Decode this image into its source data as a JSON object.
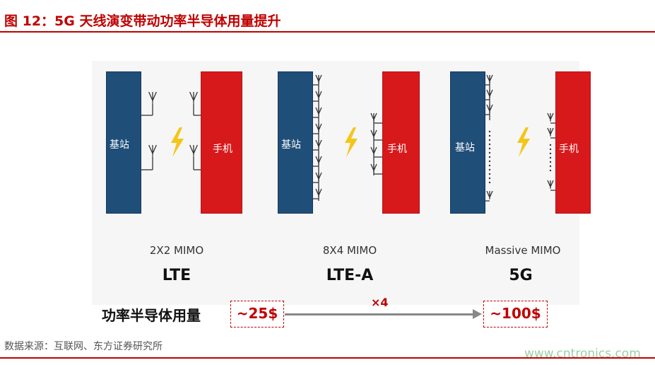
{
  "figure": {
    "title": "图 12：5G 天线演变带动功率半导体用量提升"
  },
  "panels": [
    {
      "base_label": "基站",
      "phone_label": "手机",
      "mimo": "2X2 MIMO",
      "generation": "LTE"
    },
    {
      "base_label": "基站",
      "phone_label": "手机",
      "mimo": "8X4 MIMO",
      "generation": "LTE-A"
    },
    {
      "base_label": "基站",
      "phone_label": "手机",
      "mimo": "Massive MIMO",
      "generation": "5G"
    }
  ],
  "usage": {
    "label": "功率半导体用量",
    "from": "~25$",
    "to": "~100$",
    "multiplier": "×4"
  },
  "source": "数据来源：互联网、东方证券研究所",
  "watermark": "www.cntronics.com",
  "colors": {
    "base_station": "#1f4e79",
    "phone": "#d7191c",
    "accent": "#c00000",
    "lightning": "#f5c518"
  }
}
